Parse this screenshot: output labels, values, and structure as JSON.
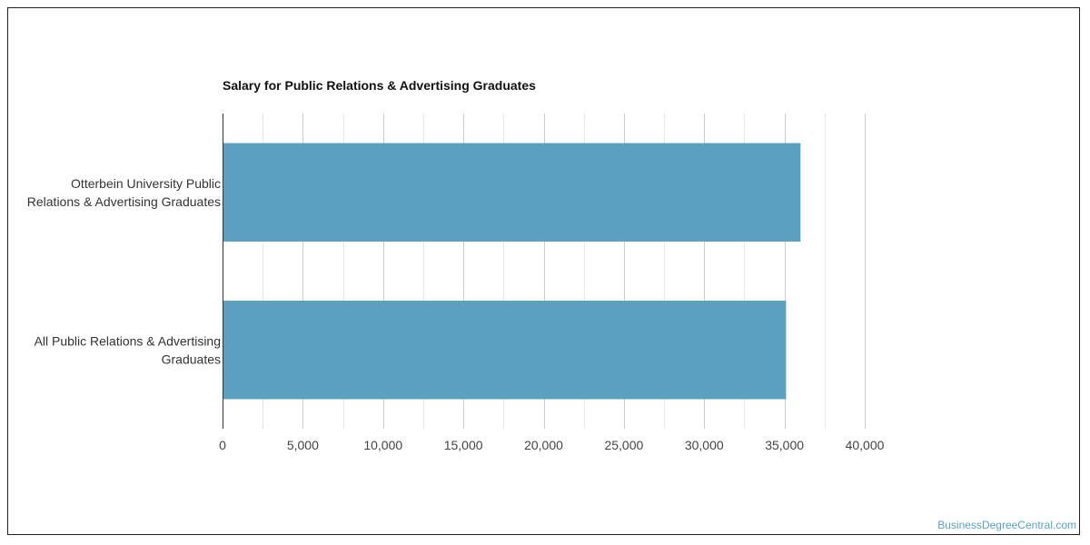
{
  "chart_data": {
    "type": "bar",
    "orientation": "horizontal",
    "title": "Salary for Public Relations & Advertising Graduates",
    "categories": [
      [
        "Otterbein University Public",
        "Relations & Advertising Graduates"
      ],
      [
        "All Public Relations & Advertising",
        "Graduates"
      ]
    ],
    "values": [
      36000,
      35100
    ],
    "xlim": [
      0,
      40000
    ],
    "major_ticks": [
      0,
      5000,
      10000,
      15000,
      20000,
      25000,
      30000,
      35000,
      40000
    ],
    "tick_labels": [
      "0",
      "5,000",
      "10,000",
      "15,000",
      "20,000",
      "25,000",
      "30,000",
      "35,000",
      "40,000"
    ],
    "minor_grid_step": 2500,
    "grid": true,
    "bar_color": "#5ba0bf",
    "gridline_color": "#cccccc",
    "minor_gridline_color": "#e6e6e6",
    "axis_color": "#333333"
  },
  "watermark": "BusinessDegreeCentral.com"
}
